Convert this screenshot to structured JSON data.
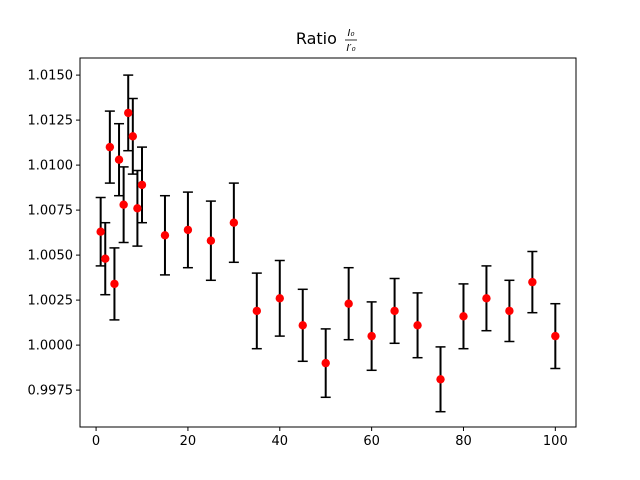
{
  "chart_data": {
    "type": "scatter",
    "title": {
      "prefix": "Ratio ",
      "numerator": "I₀",
      "denominator": "I′₀"
    },
    "xlabel": "",
    "ylabel": "",
    "xlim": [
      -3.5,
      104.5
    ],
    "ylim": [
      0.99545,
      1.01595
    ],
    "xticks": [
      0,
      20,
      40,
      60,
      80,
      100
    ],
    "xtick_labels": [
      "0",
      "20",
      "40",
      "60",
      "80",
      "100"
    ],
    "yticks": [
      0.9975,
      1.0,
      1.0025,
      1.005,
      1.0075,
      1.01,
      1.0125,
      1.015
    ],
    "ytick_labels": [
      "0.9975",
      "1.0000",
      "1.0025",
      "1.0050",
      "1.0075",
      "1.0100",
      "1.0125",
      "1.0150"
    ],
    "grid": false,
    "marker_color": "#ff0000",
    "errorbar_color": "#000000",
    "points": [
      {
        "x": 1,
        "y": 1.0063,
        "err": 0.0019
      },
      {
        "x": 2,
        "y": 1.0048,
        "err": 0.002
      },
      {
        "x": 3,
        "y": 1.011,
        "err": 0.002
      },
      {
        "x": 4,
        "y": 1.0034,
        "err": 0.002
      },
      {
        "x": 5,
        "y": 1.0103,
        "err": 0.002
      },
      {
        "x": 6,
        "y": 1.0078,
        "err": 0.0021
      },
      {
        "x": 7,
        "y": 1.0129,
        "err": 0.0021
      },
      {
        "x": 8,
        "y": 1.0116,
        "err": 0.0021
      },
      {
        "x": 9,
        "y": 1.0076,
        "err": 0.0021
      },
      {
        "x": 10,
        "y": 1.0089,
        "err": 0.0021
      },
      {
        "x": 15,
        "y": 1.0061,
        "err": 0.0022
      },
      {
        "x": 20,
        "y": 1.0064,
        "err": 0.0021
      },
      {
        "x": 25,
        "y": 1.0058,
        "err": 0.0022
      },
      {
        "x": 30,
        "y": 1.0068,
        "err": 0.0022
      },
      {
        "x": 35,
        "y": 1.0019,
        "err": 0.0021
      },
      {
        "x": 40,
        "y": 1.0026,
        "err": 0.0021
      },
      {
        "x": 45,
        "y": 1.0011,
        "err": 0.002
      },
      {
        "x": 50,
        "y": 0.999,
        "err": 0.0019
      },
      {
        "x": 55,
        "y": 1.0023,
        "err": 0.002
      },
      {
        "x": 60,
        "y": 1.0005,
        "err": 0.0019
      },
      {
        "x": 65,
        "y": 1.0019,
        "err": 0.0018
      },
      {
        "x": 70,
        "y": 1.0011,
        "err": 0.0018
      },
      {
        "x": 75,
        "y": 0.9981,
        "err": 0.0018
      },
      {
        "x": 80,
        "y": 1.0016,
        "err": 0.0018
      },
      {
        "x": 85,
        "y": 1.0026,
        "err": 0.0018
      },
      {
        "x": 90,
        "y": 1.0019,
        "err": 0.0017
      },
      {
        "x": 95,
        "y": 1.0035,
        "err": 0.0017
      },
      {
        "x": 100,
        "y": 1.0005,
        "err": 0.0018
      }
    ]
  }
}
